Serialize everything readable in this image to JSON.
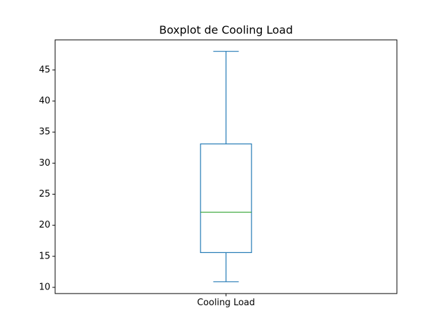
{
  "chart_data": {
    "type": "box",
    "title": "Boxplot de Cooling Load",
    "categories": [
      "Cooling Load"
    ],
    "boxes": [
      {
        "category": "Cooling Load",
        "min": 10.9,
        "q1": 15.6,
        "median": 22.1,
        "q3": 33.1,
        "max": 48.0
      }
    ],
    "y_ticks": [
      10,
      15,
      20,
      25,
      30,
      35,
      40,
      45
    ],
    "ylim": [
      9.0,
      49.85
    ],
    "grid": false,
    "colors": {
      "box": "#1f77b4",
      "whisker": "#1f77b4",
      "median": "#2ca02c",
      "axes": "#000000"
    }
  }
}
